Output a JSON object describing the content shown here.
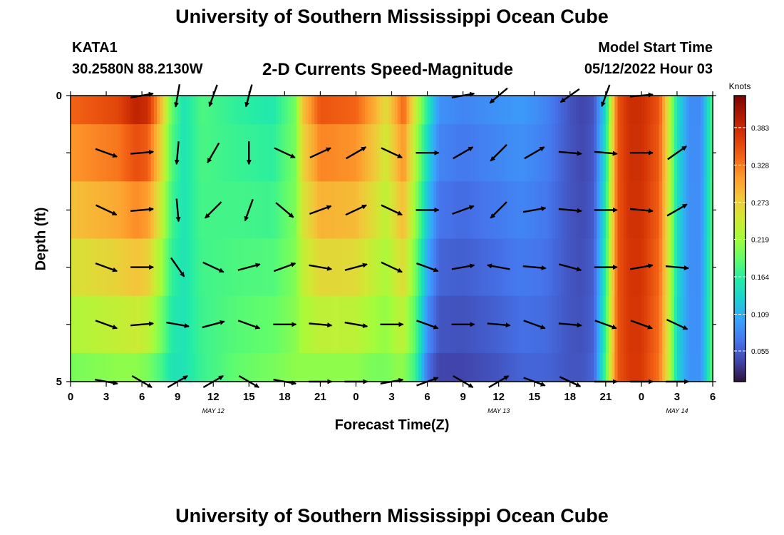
{
  "header": {
    "title": "University of Southern Mississippi Ocean Cube",
    "station_id": "KATA1",
    "station_coords": "30.2580N  88.2130W",
    "product_title": "2-D Currents Speed-Magnitude",
    "model_label": "Model Start Time",
    "model_date": "05/12/2022 Hour 03"
  },
  "footer": {
    "title": "University of Southern Mississippi Ocean Cube"
  },
  "chart_data": {
    "type": "heatmap",
    "title": "2-D Currents Speed-Magnitude",
    "xlabel": "Forecast Time(Z)",
    "ylabel": "Depth (ft)",
    "x_hours": [
      0,
      54
    ],
    "x_tick_labels": [
      "0",
      "3",
      "6",
      "9",
      "12",
      "15",
      "18",
      "21",
      "0",
      "3",
      "6",
      "9",
      "12",
      "15",
      "18",
      "21",
      "0",
      "3",
      "6"
    ],
    "date_labels": [
      {
        "text": "MAY 12",
        "hour": 12
      },
      {
        "text": "MAY 13",
        "hour": 36
      },
      {
        "text": "MAY 14",
        "hour": 51
      }
    ],
    "y_range": [
      0,
      5
    ],
    "y_tick_labels": [
      "0",
      "5"
    ],
    "colorbar": {
      "label": "Knots",
      "range": [
        0.01,
        0.43
      ],
      "ticks": [
        0.055,
        0.109,
        0.164,
        0.219,
        0.273,
        0.328,
        0.383
      ],
      "tick_labels": [
        "0.055",
        "0.109",
        "0.164",
        "0.219",
        "0.273",
        "0.328",
        "0.383"
      ],
      "colormap": [
        "#30123b",
        "#4145ab",
        "#4675ed",
        "#39a2fc",
        "#1bcfd4",
        "#24eca6",
        "#61fc6c",
        "#a4fc3b",
        "#d1e834",
        "#f3c63a",
        "#fe9b2d",
        "#f36315",
        "#d93806",
        "#b11901",
        "#7a0402"
      ]
    },
    "depth_layers": [
      0.5,
      1.5,
      2.5,
      3.5,
      4.5,
      5
    ],
    "time_profile": {
      "hours": [
        0,
        4,
        5.5,
        6.5,
        7.5,
        8.5,
        9.5,
        11,
        14,
        17,
        19,
        19.5,
        21,
        24,
        25.5,
        26.5,
        27.5,
        28,
        29,
        30,
        31,
        33,
        36,
        38,
        40,
        42,
        43,
        44,
        45,
        46,
        47,
        48,
        49.5,
        50.5,
        51,
        52,
        53,
        54
      ],
      "surface": [
        0.34,
        0.36,
        0.39,
        0.38,
        0.3,
        0.19,
        0.15,
        0.18,
        0.165,
        0.155,
        0.2,
        0.28,
        0.35,
        0.34,
        0.3,
        0.26,
        0.31,
        0.34,
        0.24,
        0.16,
        0.09,
        0.08,
        0.09,
        0.095,
        0.08,
        0.05,
        0.04,
        0.05,
        0.14,
        0.35,
        0.38,
        0.38,
        0.35,
        0.22,
        0.15,
        0.085,
        0.085,
        0.18
      ],
      "bottom": [
        0.2,
        0.21,
        0.21,
        0.2,
        0.18,
        0.15,
        0.15,
        0.17,
        0.19,
        0.2,
        0.21,
        0.21,
        0.21,
        0.21,
        0.2,
        0.2,
        0.21,
        0.21,
        0.17,
        0.07,
        0.04,
        0.04,
        0.05,
        0.06,
        0.06,
        0.05,
        0.05,
        0.06,
        0.18,
        0.35,
        0.37,
        0.37,
        0.33,
        0.22,
        0.14,
        0.09,
        0.09,
        0.19
      ]
    },
    "vectors": {
      "hours": [
        3,
        6,
        9,
        12,
        15,
        18,
        21,
        24,
        27,
        30,
        33,
        36,
        39,
        42,
        45,
        48,
        51
      ],
      "depths": [
        0,
        1,
        2,
        3,
        4,
        5
      ],
      "angles_deg": [
        [
          null,
          10,
          260,
          250,
          255,
          null,
          null,
          null,
          null,
          null,
          10,
          220,
          null,
          215,
          250,
          5,
          null
        ],
        [
          340,
          5,
          265,
          240,
          270,
          335,
          25,
          30,
          335,
          0,
          30,
          225,
          30,
          355,
          355,
          0,
          35
        ],
        [
          335,
          5,
          275,
          225,
          250,
          320,
          20,
          25,
          335,
          0,
          20,
          225,
          10,
          355,
          0,
          355,
          30
        ],
        [
          340,
          0,
          305,
          335,
          15,
          20,
          350,
          15,
          335,
          340,
          10,
          170,
          355,
          345,
          0,
          10,
          355
        ],
        [
          340,
          5,
          350,
          15,
          340,
          0,
          355,
          350,
          0,
          340,
          0,
          355,
          340,
          355,
          340,
          340,
          335
        ],
        [
          350,
          330,
          30,
          30,
          330,
          350,
          0,
          0,
          10,
          20,
          330,
          30,
          340,
          335,
          0,
          0,
          0
        ]
      ]
    }
  }
}
